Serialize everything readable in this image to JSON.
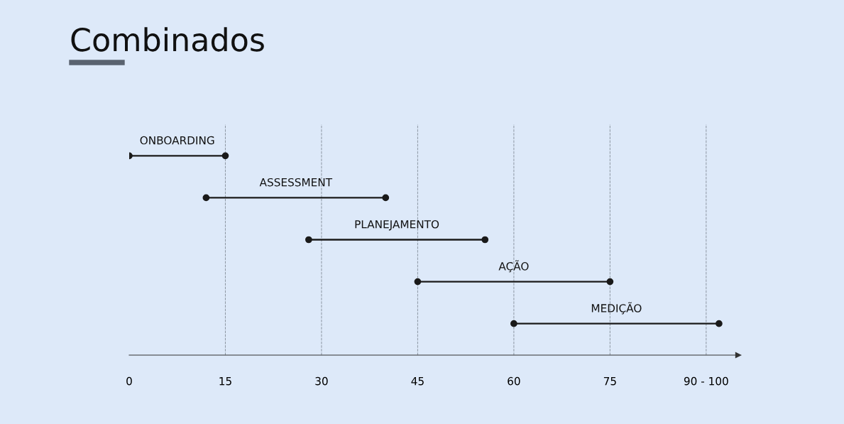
{
  "chart_data": {
    "type": "bar",
    "orientation": "horizontal",
    "title": "Combinados",
    "categories": [
      "ONBOARDING",
      "ASSESSMENT",
      "PLANEJAMENTO",
      "AÇÃO",
      "MEDIÇÃO"
    ],
    "base": [
      0,
      12,
      28,
      45,
      60
    ],
    "values": [
      15,
      28,
      27.5,
      30,
      32
    ],
    "color": "#1a1a1a",
    "marker": "circle",
    "xlim": [
      0,
      95
    ],
    "xticks": [
      0,
      15,
      30,
      45,
      60,
      75,
      {
        "value": 90,
        "label": "90 - 100"
      }
    ],
    "grid": "x",
    "tick_labels": "x"
  }
}
